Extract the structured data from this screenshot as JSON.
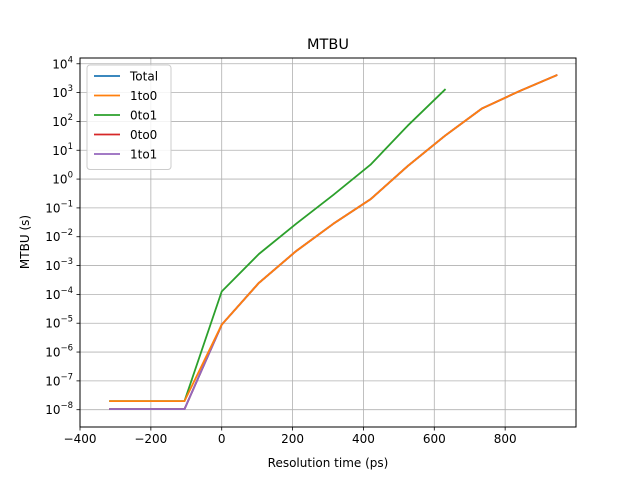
{
  "chart_data": {
    "type": "line",
    "title": "MTBU",
    "xlabel": "Resolution time (ps)",
    "ylabel": "MTBU (s)",
    "xlim": [
      -400,
      1000
    ],
    "ylim_log10": [
      -8.6,
      4.2
    ],
    "yscale": "log",
    "grid": true,
    "legend_position": "top-left",
    "x_ticks": [
      {
        "value": -400,
        "label": "−400"
      },
      {
        "value": -200,
        "label": "−200"
      },
      {
        "value": 0,
        "label": "0"
      },
      {
        "value": 200,
        "label": "200"
      },
      {
        "value": 400,
        "label": "400"
      },
      {
        "value": 600,
        "label": "600"
      },
      {
        "value": 800,
        "label": "800"
      }
    ],
    "y_ticks": [
      {
        "exp": -8,
        "base": "10",
        "sup": "−8"
      },
      {
        "exp": -7,
        "base": "10",
        "sup": "−7"
      },
      {
        "exp": -6,
        "base": "10",
        "sup": "−6"
      },
      {
        "exp": -5,
        "base": "10",
        "sup": "−5"
      },
      {
        "exp": -4,
        "base": "10",
        "sup": "−4"
      },
      {
        "exp": -3,
        "base": "10",
        "sup": "−3"
      },
      {
        "exp": -2,
        "base": "10",
        "sup": "−2"
      },
      {
        "exp": -1,
        "base": "10",
        "sup": "−1"
      },
      {
        "exp": 0,
        "base": "10",
        "sup": "0"
      },
      {
        "exp": 1,
        "base": "10",
        "sup": "1"
      },
      {
        "exp": 2,
        "base": "10",
        "sup": "2"
      },
      {
        "exp": 3,
        "base": "10",
        "sup": "3"
      },
      {
        "exp": 4,
        "base": "10",
        "sup": "4"
      }
    ],
    "series": [
      {
        "name": "Total",
        "color": "#1f77b4",
        "x": [
          -315,
          -105,
          0,
          105,
          210,
          315,
          420,
          525,
          630,
          735,
          840,
          945
        ],
        "log10_y": [
          -7.98,
          -7.98,
          -5.05,
          -3.6,
          -2.5,
          -1.55,
          -0.7,
          0.45,
          1.5,
          2.45,
          3.05,
          3.6
        ]
      },
      {
        "name": "1to0",
        "color": "#ff7f0e",
        "x": [
          -315,
          -105,
          0,
          105,
          210,
          315,
          420,
          525,
          630,
          735,
          840,
          945
        ],
        "log10_y": [
          -7.7,
          -7.7,
          -5.05,
          -3.6,
          -2.5,
          -1.55,
          -0.7,
          0.45,
          1.5,
          2.45,
          3.05,
          3.6
        ]
      },
      {
        "name": "0to1",
        "color": "#2ca02c",
        "x": [
          -315,
          -105,
          0,
          105,
          210,
          315,
          420,
          525,
          630
        ],
        "log10_y": [
          -7.7,
          -7.7,
          -3.9,
          -2.6,
          -1.55,
          -0.55,
          0.5,
          1.85,
          3.1
        ]
      },
      {
        "name": "0to0",
        "color": "#d62728",
        "x": [
          -315,
          -105,
          0,
          105,
          210,
          315,
          420,
          525,
          630,
          735,
          840,
          945
        ],
        "log10_y": [
          -7.98,
          -7.98,
          -5.05,
          -3.6,
          -2.5,
          -1.55,
          -0.7,
          0.45,
          1.5,
          2.45,
          3.05,
          3.6
        ]
      },
      {
        "name": "1to1",
        "color": "#9467bd",
        "x": [
          -315,
          -105,
          0,
          105,
          210,
          315,
          420,
          525,
          630,
          735,
          840,
          945
        ],
        "log10_y": [
          -7.98,
          -7.98,
          -5.05,
          -3.6,
          -2.5,
          -1.55,
          -0.7,
          0.45,
          1.5,
          2.45,
          3.05,
          3.6
        ]
      }
    ],
    "draw_order": [
      "Total",
      "0to0",
      "1to1",
      "0to1",
      "1to0"
    ]
  }
}
